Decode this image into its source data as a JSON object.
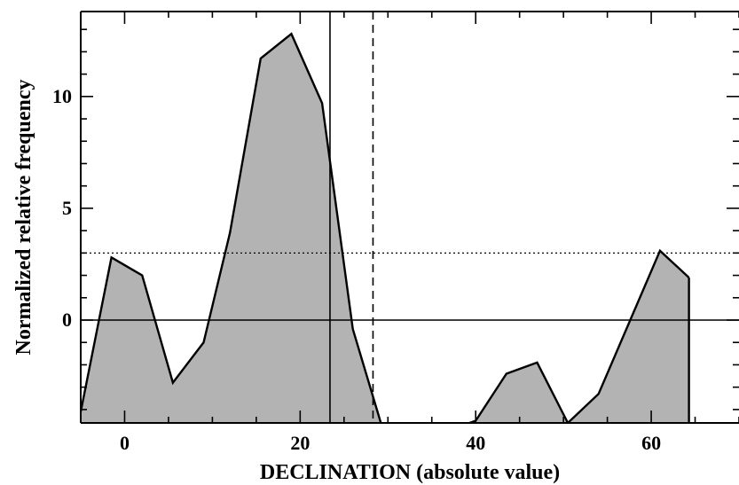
{
  "chart_data": {
    "type": "area",
    "title": "",
    "xlabel": "DECLINATION (absolute value)",
    "ylabel": "Normalized relative frequency",
    "xlim": [
      -5,
      70
    ],
    "ylim": [
      -4.6,
      13.8
    ],
    "xticks": [
      0,
      20,
      40,
      60
    ],
    "yticks": [
      0,
      5,
      10
    ],
    "xtick_labels": [
      "0",
      "20",
      "40",
      "60"
    ],
    "ytick_labels": [
      "0",
      "5",
      "10"
    ],
    "grid": false,
    "series": [
      {
        "fill": "#b3b3b3",
        "line": "#000000",
        "x": [
          -5,
          -1.5,
          2,
          5.5,
          9,
          12,
          15.5,
          19,
          22.5,
          26,
          29.5,
          33,
          36.5,
          40,
          43.5,
          47,
          50.5,
          54,
          57.5,
          61,
          64.3
        ],
        "y": [
          -4.1,
          2.8,
          2.0,
          -2.8,
          -1.0,
          3.9,
          11.7,
          12.8,
          9.7,
          -0.4,
          -5.0,
          -5.0,
          -5.0,
          -4.5,
          -2.4,
          -1.9,
          -4.6,
          -3.3,
          -0.1,
          3.1,
          1.9
        ]
      }
    ],
    "reference_lines": [
      {
        "orientation": "vertical",
        "value": 23.4,
        "style": "solid"
      },
      {
        "orientation": "vertical",
        "value": 28.3,
        "style": "dashed"
      },
      {
        "orientation": "horizontal",
        "value": 0,
        "style": "solid"
      },
      {
        "orientation": "horizontal",
        "value": 3,
        "style": "dotted"
      }
    ]
  }
}
